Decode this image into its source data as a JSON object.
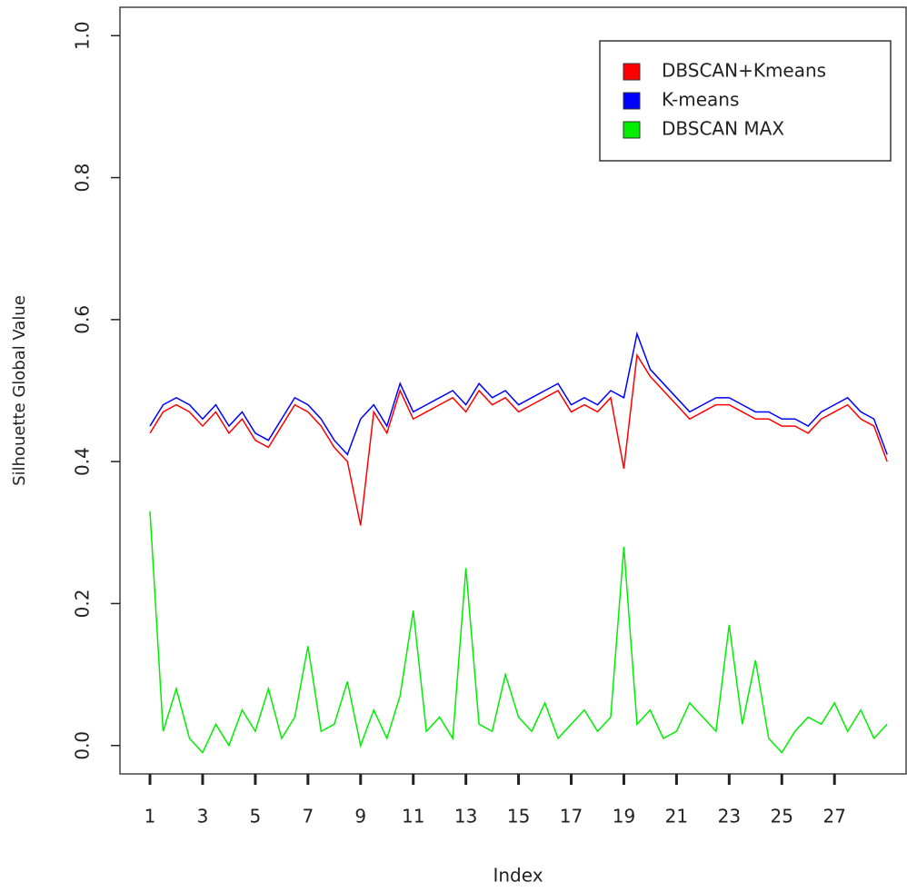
{
  "chart_data": {
    "type": "line",
    "x_label": "Index",
    "y_label": "Silhouette Global Value",
    "x": [
      1,
      1.5,
      2,
      2.5,
      3,
      3.5,
      4,
      4.5,
      5,
      5.5,
      6,
      6.5,
      7,
      7.5,
      8,
      8.5,
      9,
      9.5,
      10,
      10.5,
      11,
      11.5,
      12,
      12.5,
      13,
      13.5,
      14,
      14.5,
      15,
      15.5,
      16,
      16.5,
      17,
      17.5,
      18,
      18.5,
      19,
      19.5,
      20,
      20.5,
      21,
      21.5,
      22,
      22.5,
      23,
      23.5,
      24,
      24.5,
      25,
      25.5,
      26,
      26.5,
      27,
      27.5,
      28,
      28.5,
      29
    ],
    "series": [
      {
        "name": "DBSCAN+Kmeans",
        "color": "#ff0000",
        "values": [
          0.44,
          0.47,
          0.48,
          0.47,
          0.45,
          0.47,
          0.44,
          0.46,
          0.43,
          0.42,
          0.45,
          0.48,
          0.47,
          0.45,
          0.42,
          0.4,
          0.31,
          0.47,
          0.44,
          0.5,
          0.46,
          0.47,
          0.48,
          0.49,
          0.47,
          0.5,
          0.48,
          0.49,
          0.47,
          0.48,
          0.49,
          0.5,
          0.47,
          0.48,
          0.47,
          0.49,
          0.39,
          0.55,
          0.52,
          0.5,
          0.48,
          0.46,
          0.47,
          0.48,
          0.48,
          0.47,
          0.46,
          0.46,
          0.45,
          0.45,
          0.44,
          0.46,
          0.47,
          0.48,
          0.46,
          0.45,
          0.4
        ]
      },
      {
        "name": "K-means",
        "color": "#0000ff",
        "values": [
          0.45,
          0.48,
          0.49,
          0.48,
          0.46,
          0.48,
          0.45,
          0.47,
          0.44,
          0.43,
          0.46,
          0.49,
          0.48,
          0.46,
          0.43,
          0.41,
          0.46,
          0.48,
          0.45,
          0.51,
          0.47,
          0.48,
          0.49,
          0.5,
          0.48,
          0.51,
          0.49,
          0.5,
          0.48,
          0.49,
          0.5,
          0.51,
          0.48,
          0.49,
          0.48,
          0.5,
          0.49,
          0.58,
          0.53,
          0.51,
          0.49,
          0.47,
          0.48,
          0.49,
          0.49,
          0.48,
          0.47,
          0.47,
          0.46,
          0.46,
          0.45,
          0.47,
          0.48,
          0.49,
          0.47,
          0.46,
          0.41
        ]
      },
      {
        "name": "DBSCAN MAX",
        "color": "#00ee00",
        "values": [
          0.33,
          0.02,
          0.08,
          0.01,
          -0.01,
          0.03,
          0.0,
          0.05,
          0.02,
          0.08,
          0.01,
          0.04,
          0.14,
          0.02,
          0.03,
          0.09,
          0.0,
          0.05,
          0.01,
          0.07,
          0.19,
          0.02,
          0.04,
          0.01,
          0.25,
          0.03,
          0.02,
          0.1,
          0.04,
          0.02,
          0.06,
          0.01,
          0.03,
          0.05,
          0.02,
          0.04,
          0.28,
          0.03,
          0.05,
          0.01,
          0.02,
          0.06,
          0.04,
          0.02,
          0.17,
          0.03,
          0.12,
          0.01,
          -0.01,
          0.02,
          0.04,
          0.03,
          0.06,
          0.02,
          0.05,
          0.01,
          0.03
        ]
      }
    ],
    "xlim": [
      -0.14,
      29.72
    ],
    "ylim": [
      -0.04,
      1.04
    ],
    "xticks": [
      1,
      3,
      5,
      7,
      9,
      11,
      13,
      15,
      17,
      19,
      21,
      23,
      25,
      27
    ],
    "yticks": [
      {
        "value": 0,
        "label": "0.0"
      },
      {
        "value": 0.2,
        "label": "0.2"
      },
      {
        "value": 0.4,
        "label": "0.4"
      },
      {
        "value": 0.6,
        "label": "0.6"
      },
      {
        "value": 0.8,
        "label": "0.8"
      },
      {
        "value": 1,
        "label": "1.0"
      }
    ],
    "legend": "top-right"
  }
}
